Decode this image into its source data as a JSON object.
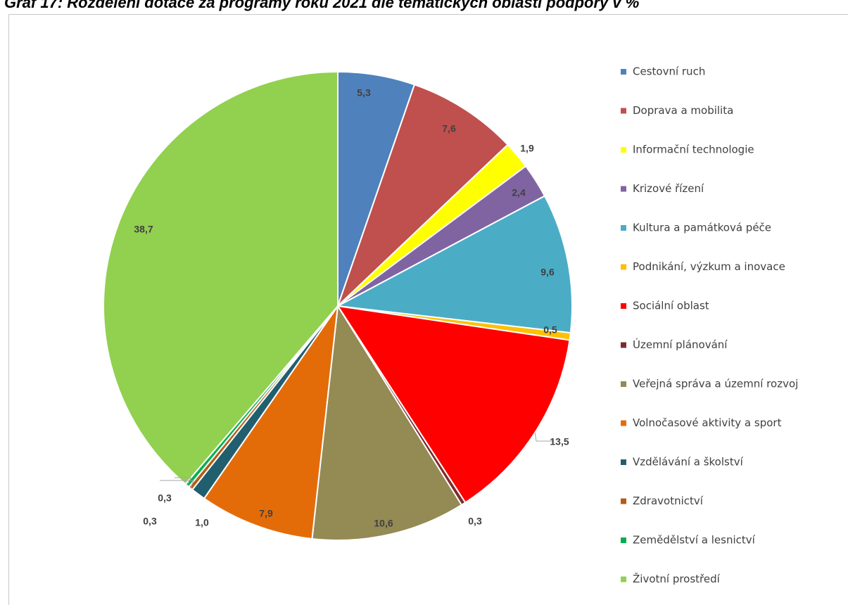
{
  "title": "Graf 17: Rozdělení dotace za programy roku 2021 dle tematických oblastí podpory v %",
  "chart_data": {
    "type": "pie",
    "title": "Graf 17: Rozdělení dotace za programy roku 2021 dle tematických oblastí podpory v %",
    "legend_position": "right",
    "start_angle_deg": 0,
    "direction": "clockwise",
    "slices": [
      {
        "label": "Cestovní ruch",
        "value": 5.3,
        "display": "5,3",
        "color": "#4f81bd"
      },
      {
        "label": "Doprava a mobilita",
        "value": 7.6,
        "display": "7,6",
        "color": "#c0504d"
      },
      {
        "label": "Informační technologie",
        "value": 1.9,
        "display": "1,9",
        "color": "#ffff00"
      },
      {
        "label": "Krizové řízení",
        "value": 2.4,
        "display": "2,4",
        "color": "#8064a2"
      },
      {
        "label": "Kultura a památková péče",
        "value": 9.6,
        "display": "9,6",
        "color": "#4bacc6"
      },
      {
        "label": "Podnikání, výzkum a inovace",
        "value": 0.5,
        "display": "0,5",
        "color": "#ffc000"
      },
      {
        "label": "Sociální oblast",
        "value": 13.5,
        "display": "13,5",
        "color": "#ff0000"
      },
      {
        "label": "Územní plánování",
        "value": 0.3,
        "display": "0,3",
        "color": "#7f2b2b"
      },
      {
        "label": "Veřejná správa a územní rozvoj",
        "value": 10.6,
        "display": "10,6",
        "color": "#948a54"
      },
      {
        "label": "Volnočasové aktivity a sport",
        "value": 7.9,
        "display": "7,9",
        "color": "#e36c09"
      },
      {
        "label": "Vzdělávání a školství",
        "value": 1.0,
        "display": "1,0",
        "color": "#215f6f"
      },
      {
        "label": "Zdravotnictví",
        "value": 0.3,
        "display": "0,3",
        "color": "#b45d14"
      },
      {
        "label": "Zemědělství a lesnictví",
        "value": 0.3,
        "display": "0,3",
        "color": "#00b050"
      },
      {
        "label": "Životní prostředí",
        "value": 38.7,
        "display": "38,7",
        "color": "#92d050"
      }
    ]
  }
}
